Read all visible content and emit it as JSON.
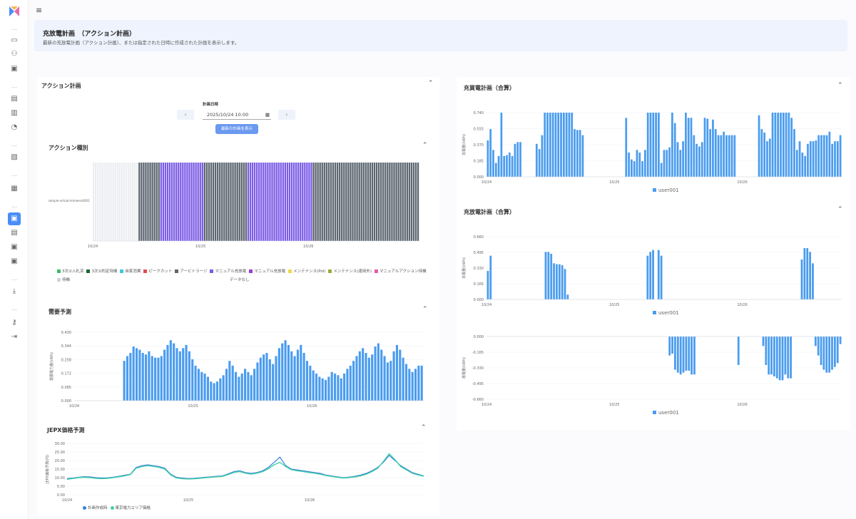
{
  "header": {
    "title": "充放電計画　（アクション計画）",
    "subtitle": "最新の充放電計画（アクション計画）、または指定された日時に作成された計画を表示します。"
  },
  "action_plan": {
    "title": "アクション計画",
    "date_label": "計画日時",
    "date_value": "2025/10/24 10:00",
    "prev_label": "‹",
    "next_label": "›",
    "apply_label": "最新の計画を表示"
  },
  "action_type": {
    "title": "アクション種別",
    "row_label": "sample-virtual-homeess0001",
    "x_ticks": [
      "10/24",
      "10/25",
      "10/26"
    ],
    "legend": [
      {
        "label": "3次②入札済",
        "color": "#3dbb6b"
      },
      {
        "label": "3次②約定待機",
        "color": "#1a6a2e"
      },
      {
        "label": "自家消費",
        "color": "#3ec8d8"
      },
      {
        "label": "ピークカット",
        "color": "#e84a4a"
      },
      {
        "label": "アービトラージ",
        "color": "#5c6670"
      },
      {
        "label": "マニュアル充放電",
        "color": "#7b5ce6"
      },
      {
        "label": "マニュアル充放電",
        "color": "#9a3ad8"
      },
      {
        "label": "メンテナンス(Pol)",
        "color": "#f0d84a"
      },
      {
        "label": "メンテナンス(運用外)",
        "color": "#9aaa3a"
      },
      {
        "label": "マニュアルアクション待機",
        "color": "#e85aa8"
      },
      {
        "label": "待機",
        "color": "#cfd4da"
      }
    ],
    "no_data": "データなし"
  },
  "demand": {
    "title": "需要予測",
    "ylabel": "需要電力量(kWh)",
    "x_ticks": [
      "10/24",
      "10/25",
      "10/26"
    ],
    "y_ticks": [
      "0.000",
      "0.085",
      "0.172",
      "0.258",
      "0.344",
      "0.430"
    ]
  },
  "jepx": {
    "title": "JEPX価格予測",
    "ylabel": "JEPX価格予測(円)",
    "x_ticks": [
      "10/24",
      "10/25",
      "10/26"
    ],
    "y_ticks": [
      "0.00",
      "5.00",
      "10.00",
      "15.00",
      "20.00",
      "25.00",
      "30.00"
    ],
    "legend": [
      {
        "label": "計画作成時",
        "color": "#3a7fd9"
      },
      {
        "label": "東京電力エリア価格",
        "color": "#3fd0a8"
      }
    ]
  },
  "charge_plan": {
    "title": "充買電計画（合算）",
    "ylabel": "充電量(kWh)",
    "x_ticks": [
      "10/24",
      "10/25",
      "10/26"
    ],
    "y_ticks": [
      "0.000",
      "0.185",
      "0.370",
      "0.555",
      "0.740"
    ],
    "legend": "user001"
  },
  "discharge_plan": {
    "title": "充放電計画（合算）",
    "ylabel": "充電量(kWh)",
    "x_ticks": [
      "10/24",
      "10/25",
      "10/26"
    ],
    "y_ticks": [
      "0.000",
      "0.165",
      "0.330",
      "0.495",
      "0.660"
    ],
    "legend": "user001",
    "neg_ylabel": "放電量(kWh)",
    "neg_y_ticks": [
      "0.000",
      "-0.165",
      "-0.330",
      "-0.495",
      "-0.660"
    ],
    "neg_legend": "user001"
  },
  "chart_data": [
    {
      "type": "bar",
      "title": "需要予測",
      "ylabel": "需要電力量(kWh)",
      "ylim": [
        0,
        0.43
      ],
      "values": [
        0.25,
        0.28,
        0.3,
        0.34,
        0.33,
        0.32,
        0.3,
        0.29,
        0.31,
        0.28,
        0.27,
        0.27,
        0.28,
        0.32,
        0.35,
        0.38,
        0.36,
        0.33,
        0.31,
        0.33,
        0.35,
        0.31,
        0.26,
        0.22,
        0.2,
        0.18,
        0.17,
        0.15,
        0.12,
        0.11,
        0.12,
        0.14,
        0.16,
        0.2,
        0.25,
        0.22,
        0.18,
        0.15,
        0.17,
        0.2,
        0.18,
        0.16,
        0.2,
        0.24,
        0.27,
        0.29,
        0.3,
        0.26,
        0.23,
        0.28,
        0.33,
        0.36,
        0.38,
        0.35,
        0.31,
        0.28,
        0.32,
        0.35,
        0.3,
        0.25,
        0.22,
        0.19,
        0.17,
        0.15,
        0.14,
        0.13,
        0.15,
        0.18,
        0.17,
        0.16,
        0.14,
        0.17,
        0.2,
        0.22,
        0.25,
        0.28,
        0.31,
        0.33,
        0.3,
        0.27,
        0.29,
        0.34,
        0.36,
        0.32,
        0.28,
        0.24,
        0.25,
        0.31,
        0.35,
        0.32,
        0.27,
        0.23,
        0.2,
        0.18,
        0.2,
        0.22,
        0.22
      ]
    },
    {
      "type": "line",
      "title": "JEPX価格予測",
      "series": [
        {
          "name": "計画作成時",
          "values": [
            9.5,
            9.8,
            10.2,
            10.6,
            10.4,
            10,
            9.8,
            9.9,
            10.3,
            10.8,
            11.4,
            12,
            16,
            17,
            17.5,
            17,
            16.5,
            15.5,
            12,
            10.2,
            9.8,
            9.5,
            9.6,
            9.9,
            10.2,
            10.5,
            10.8,
            11,
            12.2,
            13.5,
            14,
            13,
            12.5,
            13,
            14,
            16,
            19,
            22,
            17,
            15,
            14.5,
            14,
            13.5,
            13,
            12.5,
            11.5,
            11,
            10.5,
            10,
            10.3,
            10.8,
            11.5,
            12.5,
            14,
            16,
            19,
            23,
            20,
            17,
            15,
            13,
            12,
            11
          ]
        },
        {
          "name": "東京電力エリア価格",
          "values": [
            9,
            9.5,
            10,
            10.2,
            10,
            9.6,
            9.4,
            9.6,
            10,
            10.5,
            11,
            11.8,
            15.5,
            16.5,
            17,
            16.6,
            16,
            15,
            11.6,
            9.8,
            9.4,
            9.2,
            9.3,
            9.6,
            9.9,
            10.2,
            10.5,
            10.7,
            11.8,
            13,
            13.6,
            12.6,
            12.1,
            12.6,
            13.5,
            15.2,
            17.5,
            19,
            16.5,
            14.6,
            14,
            13.6,
            13,
            12.6,
            12,
            11.2,
            10.7,
            10.2,
            9.8,
            10,
            10.4,
            11,
            12,
            13.5,
            15.5,
            19.5,
            24,
            20.5,
            16.5,
            14.5,
            12.6,
            11.6,
            10.8
          ]
        }
      ],
      "ylim": [
        0,
        30
      ]
    },
    {
      "type": "bar",
      "title": "充買電計画（合算）",
      "ylim": [
        0,
        0.74
      ],
      "values": [
        0.42,
        0.55,
        0.31,
        0.16,
        0.24,
        0.74,
        0.24,
        0.25,
        0.28,
        0.24,
        0.38,
        0.4,
        0.4,
        0,
        0,
        0,
        0,
        0,
        0.38,
        0.32,
        0.48,
        0.74,
        0.74,
        0.74,
        0.74,
        0.74,
        0.74,
        0.74,
        0.74,
        0.74,
        0.74,
        0.74,
        0.55,
        0.54,
        0.54,
        0.48,
        0,
        0,
        0,
        0,
        0,
        0,
        0,
        0,
        0,
        0,
        0,
        0,
        0,
        0,
        0,
        0.68,
        0.28,
        0.2,
        0.18,
        0.31,
        0.28,
        0.18,
        0.31,
        0.74,
        0.74,
        0.74,
        0.74,
        0.74,
        0.16,
        0.31,
        0.31,
        0.34,
        0.74,
        0.62,
        0.4,
        0.31,
        0.41,
        0.74,
        0.68,
        0.68,
        0.48,
        0.38,
        0.35,
        0.4,
        0.68,
        0.67,
        0.55,
        0.66,
        0.55,
        0.48,
        0.48,
        0.52,
        0.48,
        0.48,
        0.48,
        0.48,
        0,
        0,
        0,
        0,
        0,
        0,
        0,
        0,
        0.71,
        0.55,
        0.51,
        0.41,
        0.44,
        0.74,
        0.74,
        0.74,
        0.74,
        0.74,
        0.74,
        0.74,
        0.68,
        0.55,
        0.31,
        0.41,
        0.28,
        0.24,
        0.38,
        0.41,
        0.41,
        0.42,
        0.48,
        0.48,
        0.48,
        0.48,
        0.52,
        0.38,
        0.41,
        0.41,
        0.48
      ]
    },
    {
      "type": "bar",
      "title": "充放電計画（合算）",
      "ylim": [
        -0.66,
        0.66
      ],
      "values": [
        0.3,
        0.46,
        0,
        0,
        0,
        0,
        0,
        0,
        0,
        0,
        0,
        0,
        0,
        0,
        0,
        0,
        0,
        0,
        0,
        0,
        0,
        0.5,
        0.5,
        0.48,
        0.38,
        0.37,
        0.37,
        0.36,
        0.32,
        0.05,
        0,
        0,
        0,
        0,
        0,
        0,
        0,
        0,
        0,
        0,
        0,
        0,
        0,
        0,
        0,
        0,
        0,
        0,
        0,
        0,
        0,
        0,
        0,
        0,
        0,
        0,
        0,
        0,
        0.46,
        0.5,
        0.52,
        0,
        0.52,
        0.46,
        0,
        0,
        -0.2,
        -0.18,
        -0.35,
        -0.38,
        -0.4,
        -0.38,
        -0.36,
        -0.36,
        -0.4,
        -0.4,
        0,
        0,
        0,
        0,
        0,
        0,
        0,
        0,
        0,
        0,
        0,
        0,
        0,
        0,
        0,
        -0.3,
        0,
        0,
        0,
        0,
        0,
        0,
        0,
        0,
        -0.1,
        -0.3,
        -0.4,
        -0.4,
        -0.42,
        -0.44,
        -0.46,
        -0.46,
        -0.4,
        -0.44,
        -0.44,
        0,
        0,
        0,
        0.42,
        0.54,
        0.54,
        0.5,
        0.38,
        -0.1,
        -0.2,
        -0.3,
        -0.35,
        -0.38,
        -0.38,
        -0.35,
        -0.32,
        -0.28,
        -0.08
      ]
    }
  ]
}
